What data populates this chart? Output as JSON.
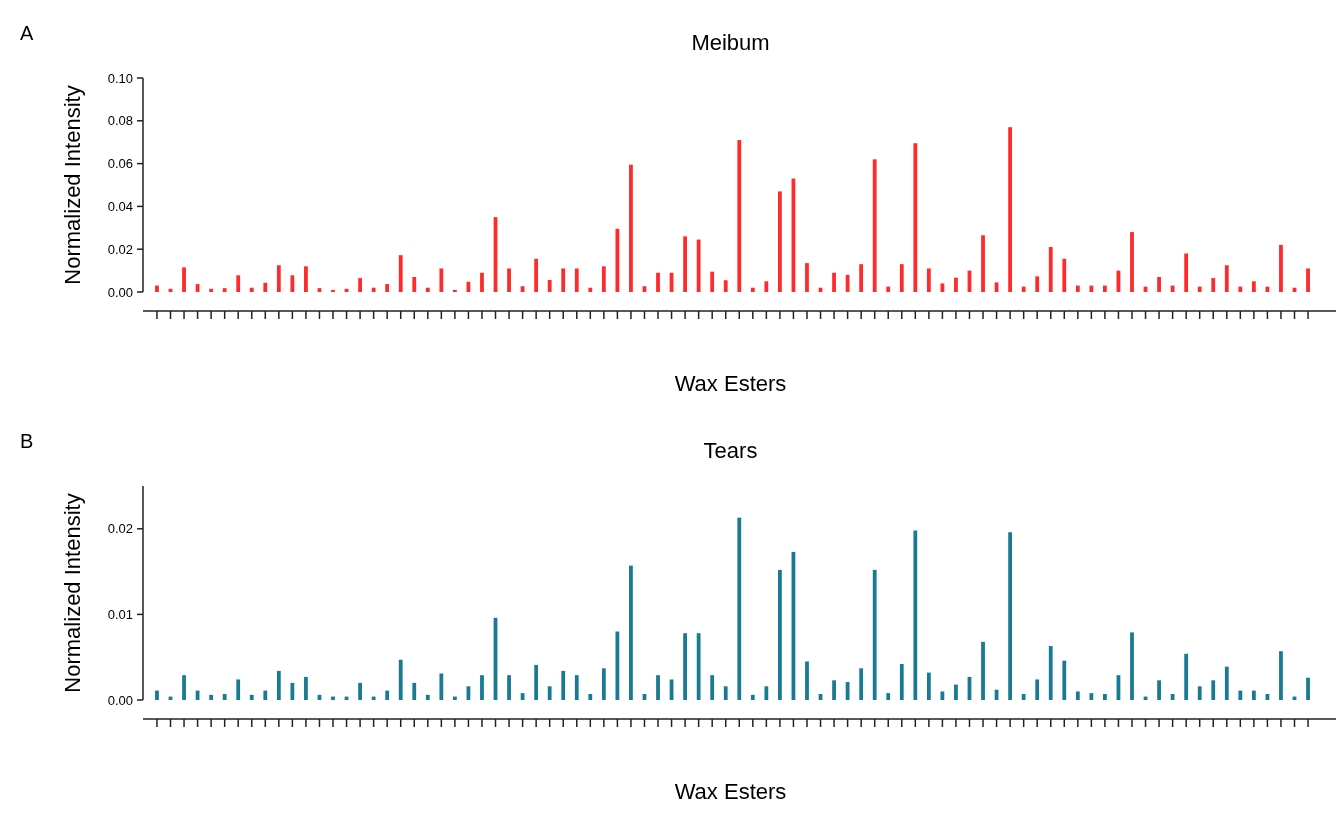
{
  "chart_data": [
    {
      "type": "bar",
      "title": "Meibum",
      "xlabel": "Wax Esters",
      "ylabel": "Normalized Intensity",
      "annotations": [
        "A"
      ],
      "color": "#ff2a2a",
      "categories": [
        null,
        null,
        null,
        null,
        null,
        null,
        null,
        null,
        null,
        null,
        null,
        null,
        null,
        null,
        null,
        null,
        null,
        null,
        null,
        null,
        null,
        null,
        null,
        null,
        null,
        null,
        null,
        null,
        null,
        null,
        null,
        null,
        null,
        null,
        null,
        null,
        null,
        null,
        null,
        null,
        null,
        null,
        null,
        null,
        null,
        null,
        null,
        null,
        null,
        null,
        null,
        null,
        null,
        null,
        null,
        null,
        null,
        null,
        null,
        null,
        null,
        null,
        null,
        null,
        null,
        null,
        null,
        null,
        null,
        null,
        null,
        null,
        null,
        null,
        null,
        null,
        null,
        null,
        null,
        null,
        null,
        null,
        null,
        null,
        null,
        null
      ],
      "values": [
        0.003,
        0.0015,
        0.0115,
        0.0037,
        0.0015,
        0.0018,
        0.0078,
        0.002,
        0.0043,
        0.0125,
        0.0078,
        0.012,
        0.0018,
        0.001,
        0.0015,
        0.0065,
        0.002,
        0.0037,
        0.0172,
        0.007,
        0.002,
        0.011,
        0.001,
        0.0048,
        0.009,
        0.035,
        0.011,
        0.0027,
        0.0155,
        0.0056,
        0.011,
        0.011,
        0.002,
        0.012,
        0.0295,
        0.0595,
        0.0027,
        0.009,
        0.009,
        0.026,
        0.0245,
        0.0095,
        0.0055,
        0.071,
        0.002,
        0.005,
        0.047,
        0.053,
        0.0135,
        0.002,
        0.009,
        0.008,
        0.013,
        0.062,
        0.0025,
        0.013,
        0.0695,
        0.011,
        0.004,
        0.0067,
        0.01,
        0.0265,
        0.0045,
        0.077,
        0.0025,
        0.0073,
        0.021,
        0.0155,
        0.003,
        0.003,
        0.003,
        0.01,
        0.028,
        0.0025,
        0.007,
        0.003,
        0.018,
        0.0025,
        0.0065,
        0.0125,
        0.0025,
        0.005,
        0.0025,
        0.022,
        0.002,
        0.011
      ],
      "ylim": [
        0,
        0.1
      ],
      "yticks": [
        {
          "value": 0,
          "label": "0.00"
        },
        {
          "value": 0.02,
          "label": "0.02"
        },
        {
          "value": 0.04,
          "label": "0.04"
        },
        {
          "value": 0.06,
          "label": "0.06"
        },
        {
          "value": 0.08,
          "label": "0.08"
        },
        {
          "value": 0.1,
          "label": "0.10"
        }
      ]
    },
    {
      "type": "bar",
      "title": "Tears",
      "xlabel": "Wax Esters",
      "ylabel": "Normalized Intensity",
      "annotations": [
        "B"
      ],
      "color": "#1a7a94",
      "categories": [
        null,
        null,
        null,
        null,
        null,
        null,
        null,
        null,
        null,
        null,
        null,
        null,
        null,
        null,
        null,
        null,
        null,
        null,
        null,
        null,
        null,
        null,
        null,
        null,
        null,
        null,
        null,
        null,
        null,
        null,
        null,
        null,
        null,
        null,
        null,
        null,
        null,
        null,
        null,
        null,
        null,
        null,
        null,
        null,
        null,
        null,
        null,
        null,
        null,
        null,
        null,
        null,
        null,
        null,
        null,
        null,
        null,
        null,
        null,
        null,
        null,
        null,
        null,
        null,
        null,
        null,
        null,
        null,
        null,
        null,
        null,
        null,
        null,
        null,
        null,
        null,
        null,
        null,
        null,
        null,
        null,
        null,
        null,
        null,
        null,
        null
      ],
      "values": [
        0.0011,
        0.0004,
        0.0029,
        0.0011,
        0.0006,
        0.0007,
        0.0024,
        0.0006,
        0.0011,
        0.0034,
        0.002,
        0.0027,
        0.0006,
        0.0004,
        0.0004,
        0.002,
        0.0004,
        0.0011,
        0.0047,
        0.002,
        0.0006,
        0.0031,
        0.0004,
        0.0016,
        0.0029,
        0.0096,
        0.0029,
        0.0008,
        0.0041,
        0.0016,
        0.0034,
        0.0029,
        0.0007,
        0.0037,
        0.008,
        0.0157,
        0.0007,
        0.0029,
        0.0024,
        0.0078,
        0.0078,
        0.0029,
        0.0016,
        0.0213,
        0.0006,
        0.0016,
        0.0152,
        0.0173,
        0.0045,
        0.0007,
        0.0023,
        0.0021,
        0.0037,
        0.0152,
        0.0008,
        0.0042,
        0.0198,
        0.0032,
        0.001,
        0.0018,
        0.0027,
        0.0068,
        0.0012,
        0.0196,
        0.0007,
        0.0024,
        0.0063,
        0.0046,
        0.001,
        0.0008,
        0.0007,
        0.0029,
        0.0079,
        0.0004,
        0.0023,
        0.0007,
        0.0054,
        0.0016,
        0.0023,
        0.0039,
        0.0011,
        0.0011,
        0.0007,
        0.0057,
        0.0004,
        0.0026
      ],
      "ylim": [
        0,
        0.025
      ],
      "yticks": [
        {
          "value": 0,
          "label": "0.00"
        },
        {
          "value": 0.01,
          "label": "0.01"
        },
        {
          "value": 0.02,
          "label": "0.02"
        }
      ]
    }
  ]
}
